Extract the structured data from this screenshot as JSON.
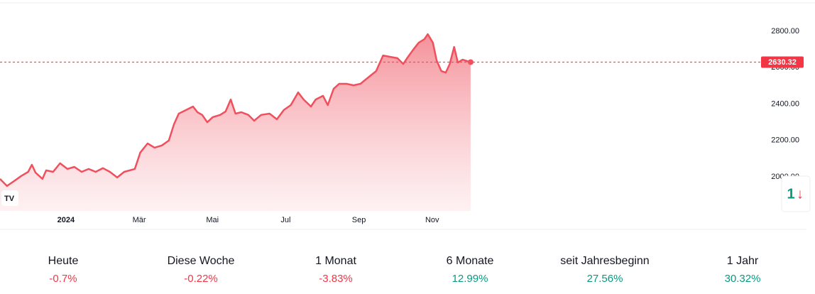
{
  "chart_data": {
    "type": "line",
    "x": [
      -1.8,
      -1.61,
      -1.41,
      -1.22,
      -1.03,
      -0.93,
      -0.83,
      -0.64,
      -0.54,
      -0.35,
      -0.16,
      0.04,
      0.23,
      0.43,
      0.62,
      0.81,
      1.01,
      1.2,
      1.4,
      1.59,
      1.88,
      2.03,
      2.23,
      2.42,
      2.62,
      2.81,
      2.95,
      3.08,
      3.28,
      3.47,
      3.59,
      3.72,
      3.86,
      4.01,
      4.21,
      4.36,
      4.5,
      4.63,
      4.79,
      4.98,
      5.14,
      5.33,
      5.56,
      5.76,
      5.95,
      6.14,
      6.34,
      6.49,
      6.69,
      6.82,
      7.02,
      7.15,
      7.31,
      7.46,
      7.66,
      7.85,
      8.04,
      8.28,
      8.47,
      8.66,
      8.86,
      9.05,
      9.21,
      9.34,
      9.48,
      9.63,
      9.79,
      9.88,
      10.02,
      10.12,
      10.25,
      10.37,
      10.48,
      10.6,
      10.7,
      10.83,
      10.95,
      11.05
    ],
    "series": [
      {
        "color": "#f0505e",
        "values": [
          1988,
          1949,
          1977,
          2004,
          2027,
          2066,
          2023,
          1988,
          2035,
          2027,
          2074,
          2043,
          2054,
          2027,
          2043,
          2027,
          2047,
          2027,
          1996,
          2027,
          2043,
          2133,
          2183,
          2160,
          2172,
          2199,
          2289,
          2347,
          2367,
          2386,
          2355,
          2340,
          2300,
          2328,
          2340,
          2359,
          2425,
          2347,
          2355,
          2340,
          2308,
          2340,
          2347,
          2316,
          2367,
          2394,
          2464,
          2425,
          2386,
          2425,
          2445,
          2394,
          2484,
          2511,
          2511,
          2503,
          2511,
          2550,
          2581,
          2667,
          2659,
          2652,
          2620,
          2659,
          2698,
          2737,
          2757,
          2784,
          2737,
          2640,
          2581,
          2573,
          2620,
          2714,
          2628,
          2644,
          2636,
          2630.32
        ]
      }
    ],
    "last_price": 2630.32,
    "xlim": [
      -1.8,
      18.94
    ],
    "ylim": [
      1812,
      2972
    ],
    "xticks": [
      {
        "value": 0,
        "label": "2024"
      },
      {
        "value": 2,
        "label": "Mär"
      },
      {
        "value": 4,
        "label": "Mai"
      },
      {
        "value": 6,
        "label": "Jul"
      },
      {
        "value": 8,
        "label": "Sep"
      },
      {
        "value": 10,
        "label": "Nov"
      }
    ],
    "yticks": [
      {
        "value": 2000,
        "label": "2000.00"
      },
      {
        "value": 2200,
        "label": "2200.00"
      },
      {
        "value": 2400,
        "label": "2400.00"
      },
      {
        "value": 2600,
        "label": "2600.00"
      },
      {
        "value": 2800,
        "label": "2800.00"
      }
    ],
    "performance": [
      {
        "label": "Heute",
        "change": "-0.7%"
      },
      {
        "label": "Diese Woche",
        "change": "-0.22%"
      },
      {
        "label": "1 Monat",
        "change": "-3.83%"
      },
      {
        "label": "6 Monate",
        "change": "12.99%"
      },
      {
        "label": "seit Jahresbeginn",
        "change": "27.56%"
      },
      {
        "label": "1 Jahr",
        "change": "30.32%"
      }
    ]
  }
}
